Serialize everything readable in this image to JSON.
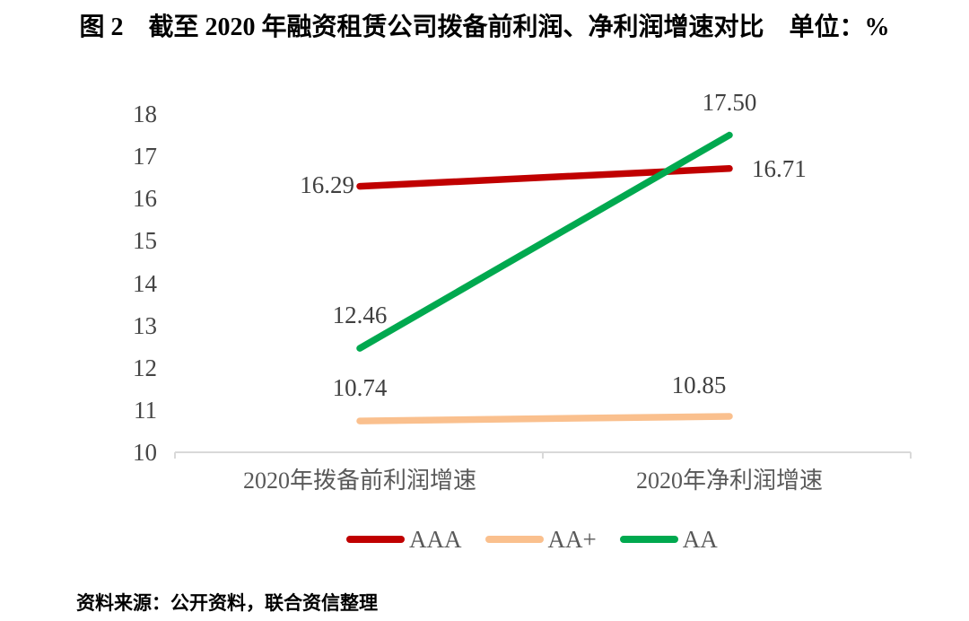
{
  "title": "图 2　截至 2020 年融资租赁公司拨备前利润、净利润增速对比　单位：%",
  "source_note": "资料来源：公开资料，联合资信整理",
  "chart_data": {
    "type": "line",
    "title": "图 2　截至 2020 年融资租赁公司拨备前利润、净利润增速对比",
    "unit": "%",
    "categories": [
      "2020年拨备前利润增速",
      "2020年净利润增速"
    ],
    "series": [
      {
        "name": "AAA",
        "color": "#C00000",
        "values": [
          16.29,
          16.71
        ],
        "label_pos": [
          "left",
          "right"
        ]
      },
      {
        "name": "AA+",
        "color": "#FAC08E",
        "values": [
          10.74,
          10.85
        ],
        "label_pos": [
          "above",
          "above-left"
        ]
      },
      {
        "name": "AA",
        "color": "#00A94F",
        "values": [
          12.46,
          17.5
        ],
        "label_pos": [
          "above",
          "above"
        ]
      }
    ],
    "ylim": [
      10,
      18
    ],
    "ytick_step": 1,
    "grid": false,
    "data_labels": true,
    "legend_position": "bottom",
    "axis_line_color": "#D9D9D9"
  }
}
